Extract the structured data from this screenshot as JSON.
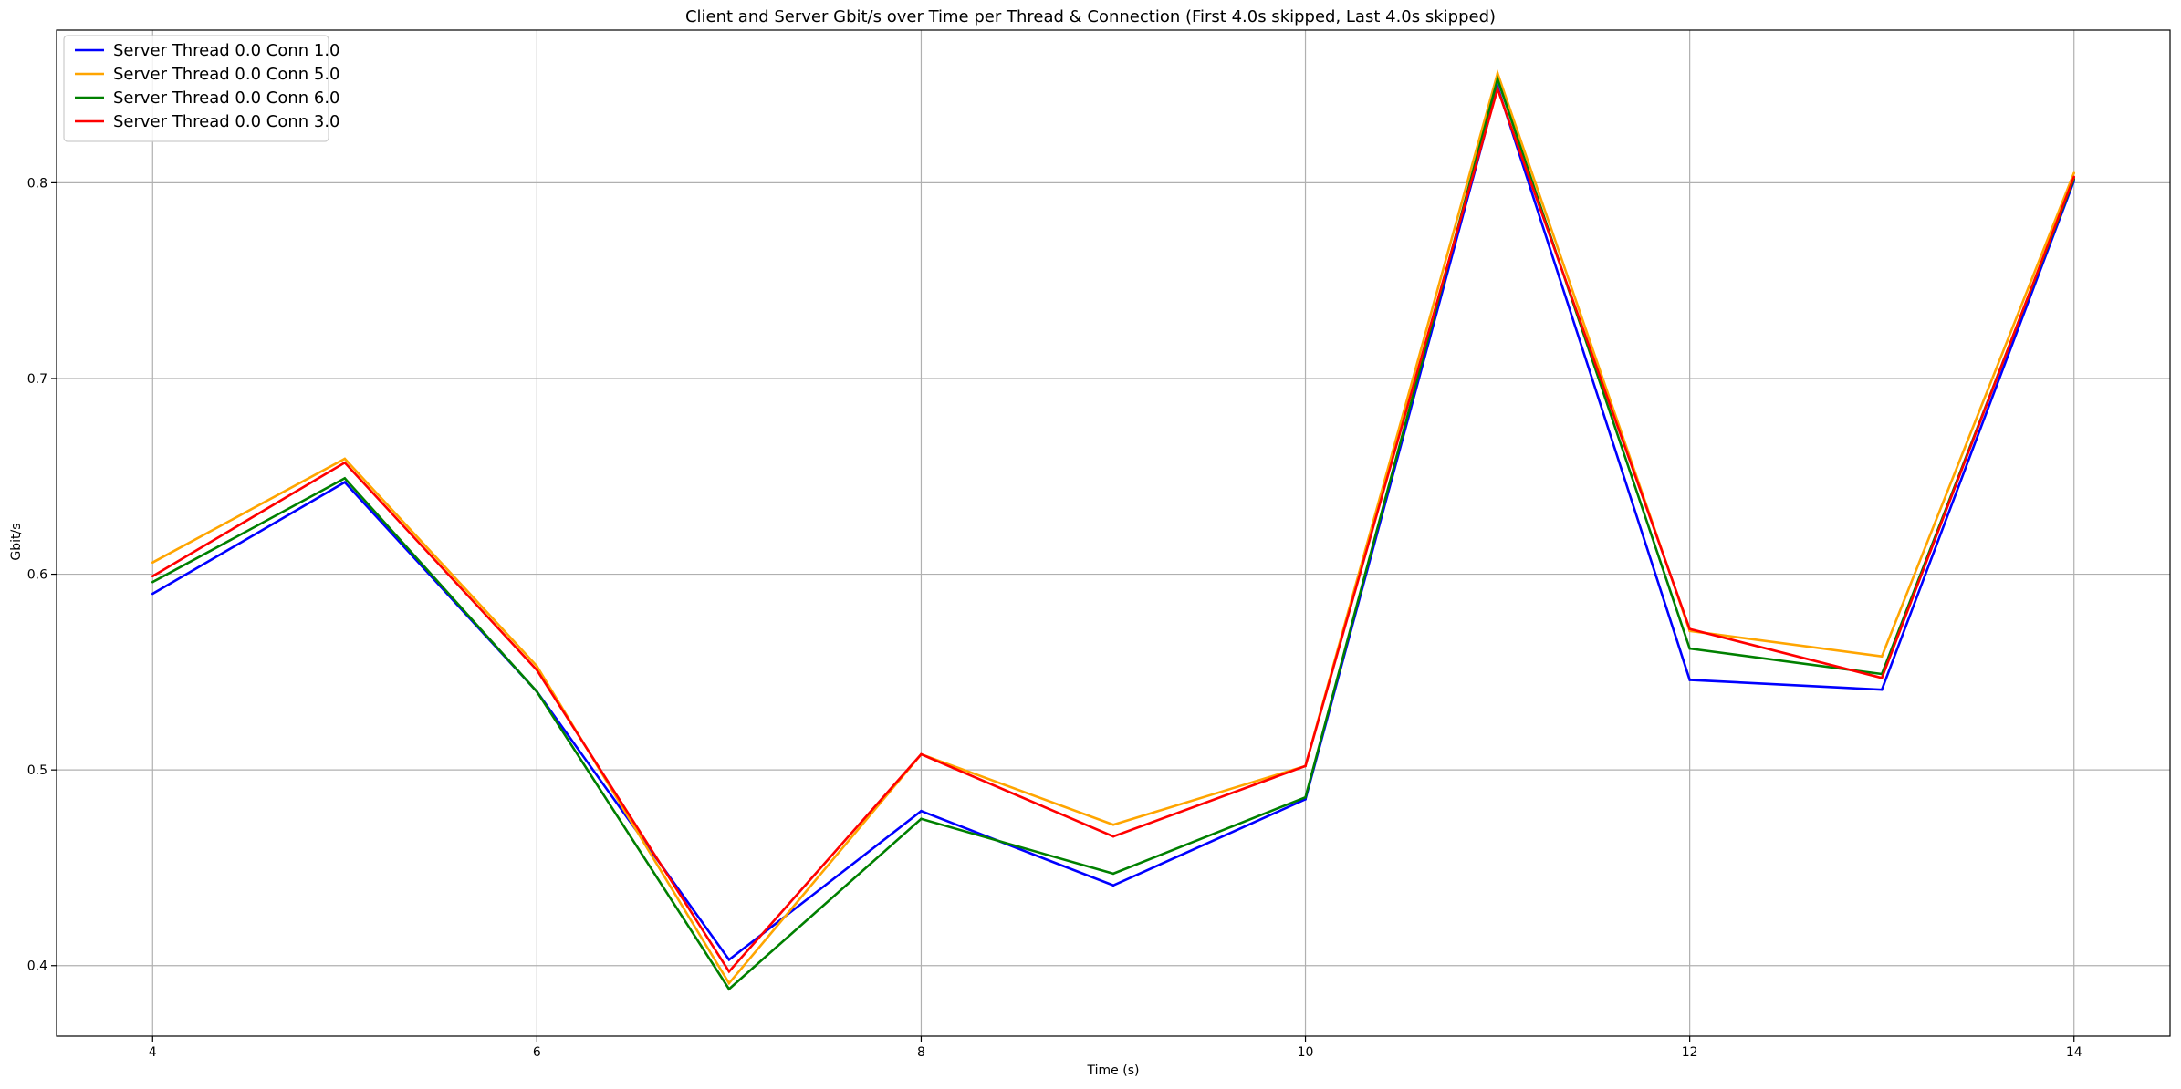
{
  "chart_data": {
    "type": "line",
    "title": "Client and Server Gbit/s over Time per Thread & Connection (First 4.0s skipped, Last 4.0s skipped)",
    "xlabel": "Time (s)",
    "ylabel": "Gbit/s",
    "xlim": [
      3.5,
      14.5
    ],
    "ylim": [
      0.364,
      0.878
    ],
    "xticks": [
      4,
      6,
      8,
      10,
      12,
      14
    ],
    "xtick_labels": [
      "4",
      "6",
      "8",
      "10",
      "12",
      "14"
    ],
    "yticks": [
      0.4,
      0.5,
      0.6,
      0.7,
      0.8
    ],
    "ytick_labels": [
      "0.4",
      "0.5",
      "0.6",
      "0.7",
      "0.8"
    ],
    "grid": true,
    "legend_position": "top-left",
    "x": [
      4,
      5,
      6,
      7,
      8,
      9,
      10,
      11,
      12,
      13,
      14
    ],
    "series": [
      {
        "name": "Server Thread 0.0 Conn 1.0",
        "color": "#0000ff",
        "values": [
          0.59,
          0.647,
          0.54,
          0.403,
          0.479,
          0.441,
          0.485,
          0.849,
          0.546,
          0.541,
          0.801
        ]
      },
      {
        "name": "Server Thread 0.0 Conn 5.0",
        "color": "#ffa500",
        "values": [
          0.606,
          0.659,
          0.553,
          0.391,
          0.508,
          0.472,
          0.502,
          0.856,
          0.571,
          0.558,
          0.805
        ]
      },
      {
        "name": "Server Thread 0.0 Conn 6.0",
        "color": "#008000",
        "values": [
          0.596,
          0.649,
          0.54,
          0.388,
          0.475,
          0.447,
          0.486,
          0.853,
          0.562,
          0.549,
          0.802
        ]
      },
      {
        "name": "Server Thread 0.0 Conn 3.0",
        "color": "#ff0000",
        "values": [
          0.599,
          0.657,
          0.551,
          0.397,
          0.508,
          0.466,
          0.502,
          0.848,
          0.572,
          0.547,
          0.803
        ]
      }
    ]
  }
}
